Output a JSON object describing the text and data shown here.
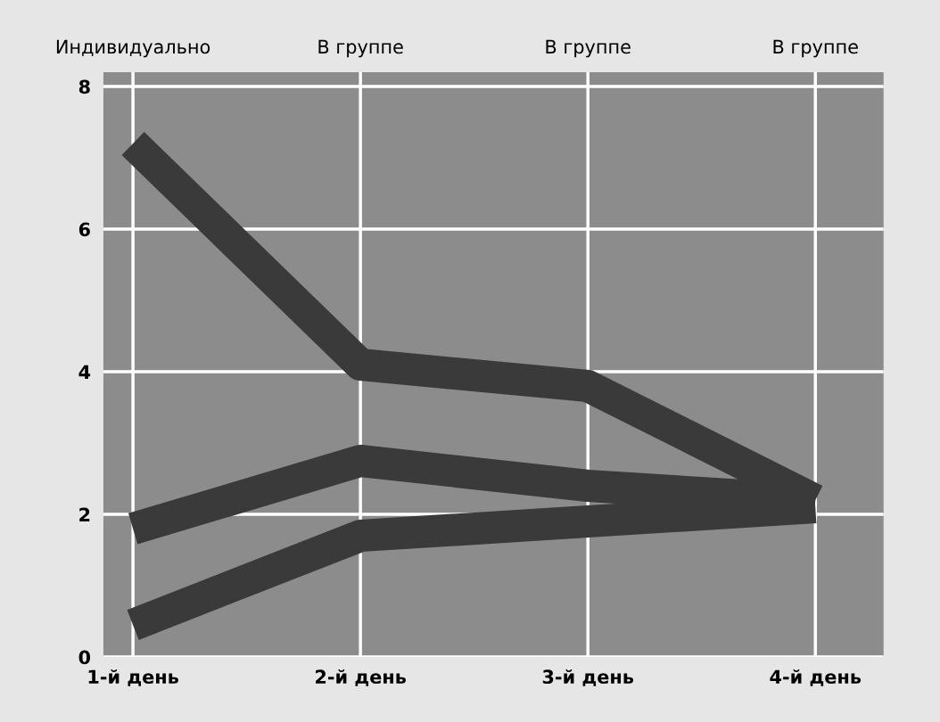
{
  "chart_data": {
    "type": "line",
    "categories": [
      "1-й день",
      "2-й день",
      "3-й день",
      "4-й день"
    ],
    "series": [
      {
        "color": "#3a3a3a",
        "values": [
          7.2,
          4.1,
          3.8,
          2.2
        ]
      },
      {
        "color": "#3a3a3a",
        "values": [
          1.8,
          2.75,
          2.4,
          2.2
        ]
      },
      {
        "color": "#3a3a3a",
        "values": [
          0.45,
          1.7,
          1.9,
          2.1
        ]
      }
    ],
    "annotations": [
      "Индивидуально",
      "В группе",
      "В группе",
      "В группе"
    ],
    "ylim": [
      0,
      8.2
    ],
    "yticks": [
      0,
      2,
      4,
      6,
      8
    ],
    "grid": true,
    "marker": "none",
    "line_style": "solid"
  }
}
